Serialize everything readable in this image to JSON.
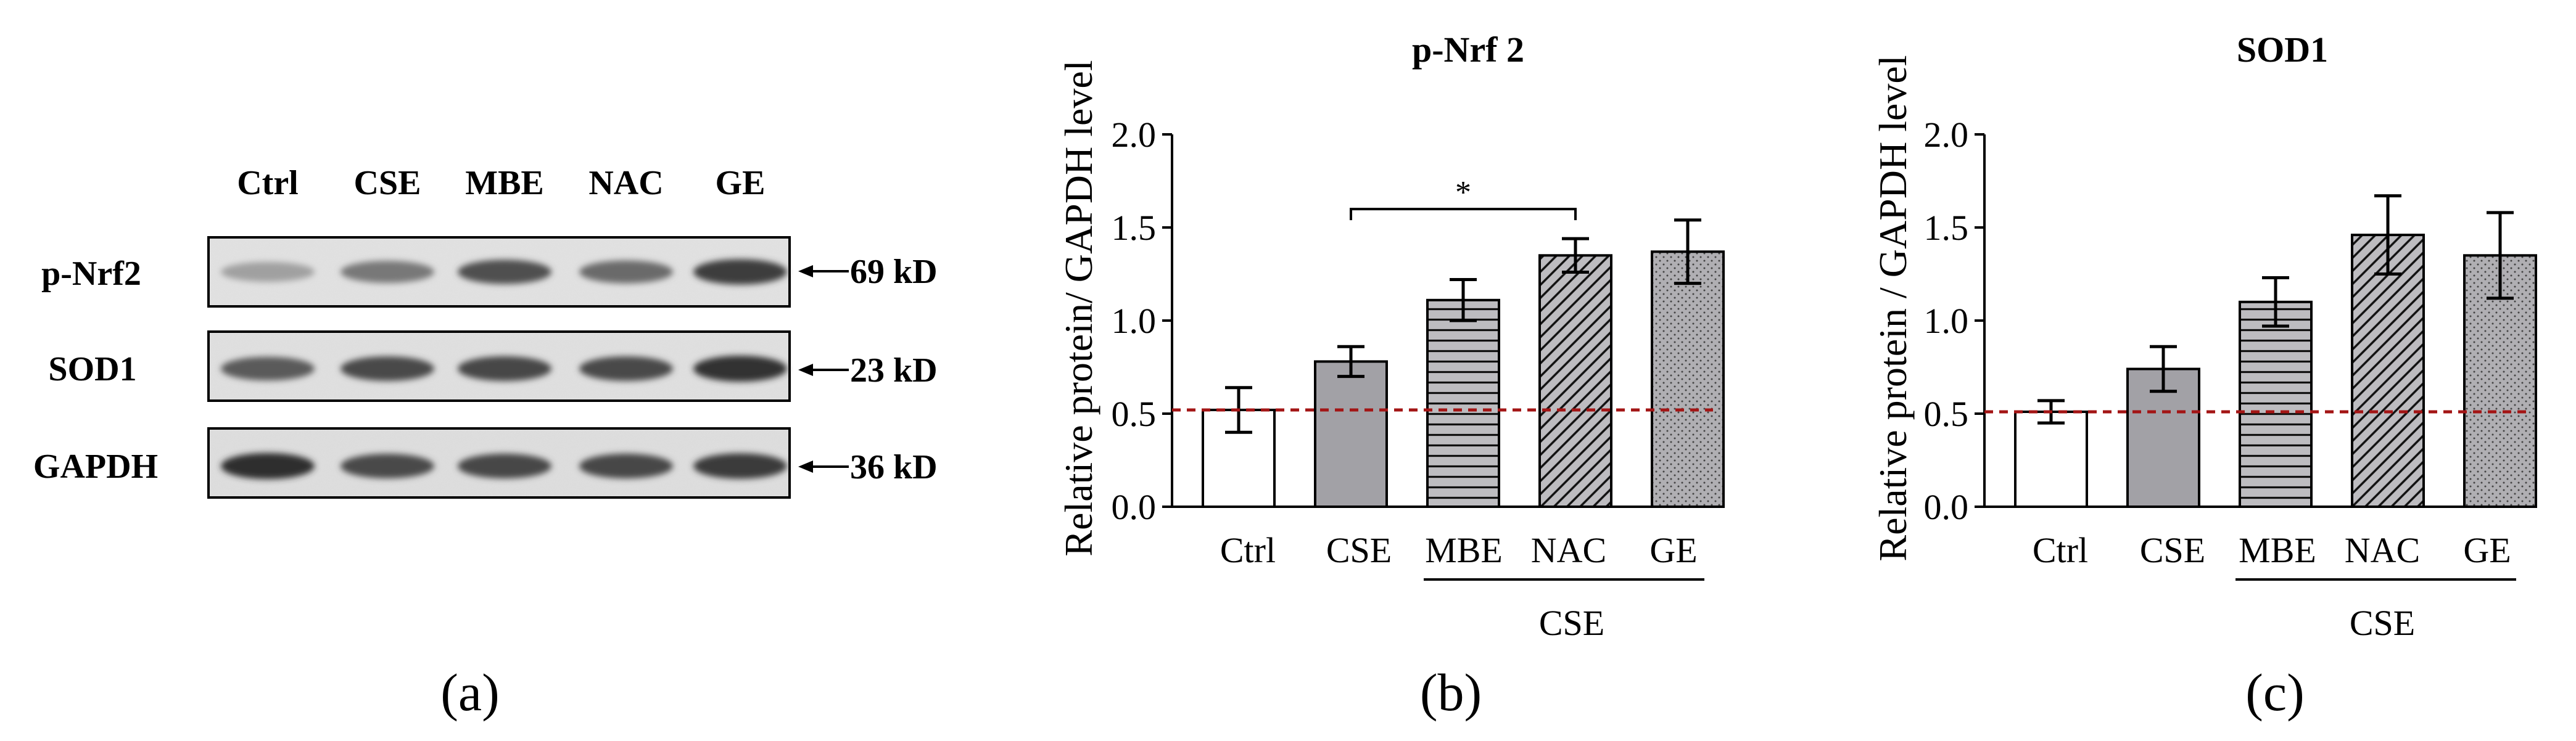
{
  "colors": {
    "ctrl": "#ffffff",
    "cse": "#a2a1a6",
    "hatch_bg": "#bdbcc0",
    "axis": "#000000",
    "baseline": "#a31515"
  },
  "panel_a": {
    "panel_label": "(a)",
    "lanes": [
      "Ctrl",
      "CSE",
      "MBE",
      "NAC",
      "GE"
    ],
    "blots": [
      {
        "name": "p-Nrf2",
        "size": "69 kD"
      },
      {
        "name": "SOD1",
        "size": "23 kD"
      },
      {
        "name": "GAPDH",
        "size": "36 kD"
      }
    ],
    "band_intensity": [
      [
        0.35,
        0.55,
        0.75,
        0.62,
        0.85
      ],
      [
        0.7,
        0.78,
        0.8,
        0.78,
        0.9
      ],
      [
        0.92,
        0.78,
        0.8,
        0.8,
        0.86
      ]
    ]
  },
  "chart_data": [
    {
      "type": "bar",
      "panel_label": "(b)",
      "title": "p-Nrf 2",
      "ylabel": "Relative protein/ GAPDH level",
      "xlabel": "",
      "group_label": "CSE",
      "categories": [
        "Ctrl",
        "CSE",
        "MBE",
        "NAC",
        "GE"
      ],
      "patterns": [
        "white",
        "gray",
        "horizontal",
        "diagonal",
        "dots"
      ],
      "values": [
        0.52,
        0.78,
        1.11,
        1.35,
        1.37
      ],
      "errors": [
        0.12,
        0.08,
        0.11,
        0.09,
        0.17
      ],
      "ylim": [
        0,
        2.0
      ],
      "yticks": [
        "0.0",
        "0.5",
        "1.0",
        "1.5",
        "2.0"
      ],
      "baseline": 0.52,
      "significance": {
        "from": 1,
        "to": 3,
        "label": "*"
      }
    },
    {
      "type": "bar",
      "panel_label": "(c)",
      "title": "SOD1",
      "ylabel": "Relative protein / GAPDH level",
      "xlabel": "",
      "group_label": "CSE",
      "categories": [
        "Ctrl",
        "CSE",
        "MBE",
        "NAC",
        "GE"
      ],
      "patterns": [
        "white",
        "gray",
        "horizontal",
        "diagonal",
        "dots"
      ],
      "values": [
        0.51,
        0.74,
        1.1,
        1.46,
        1.35
      ],
      "errors": [
        0.06,
        0.12,
        0.13,
        0.21,
        0.23
      ],
      "ylim": [
        0,
        2.0
      ],
      "yticks": [
        "0.0",
        "0.5",
        "1.0",
        "1.5",
        "2.0"
      ],
      "baseline": 0.51,
      "significance": null
    }
  ]
}
